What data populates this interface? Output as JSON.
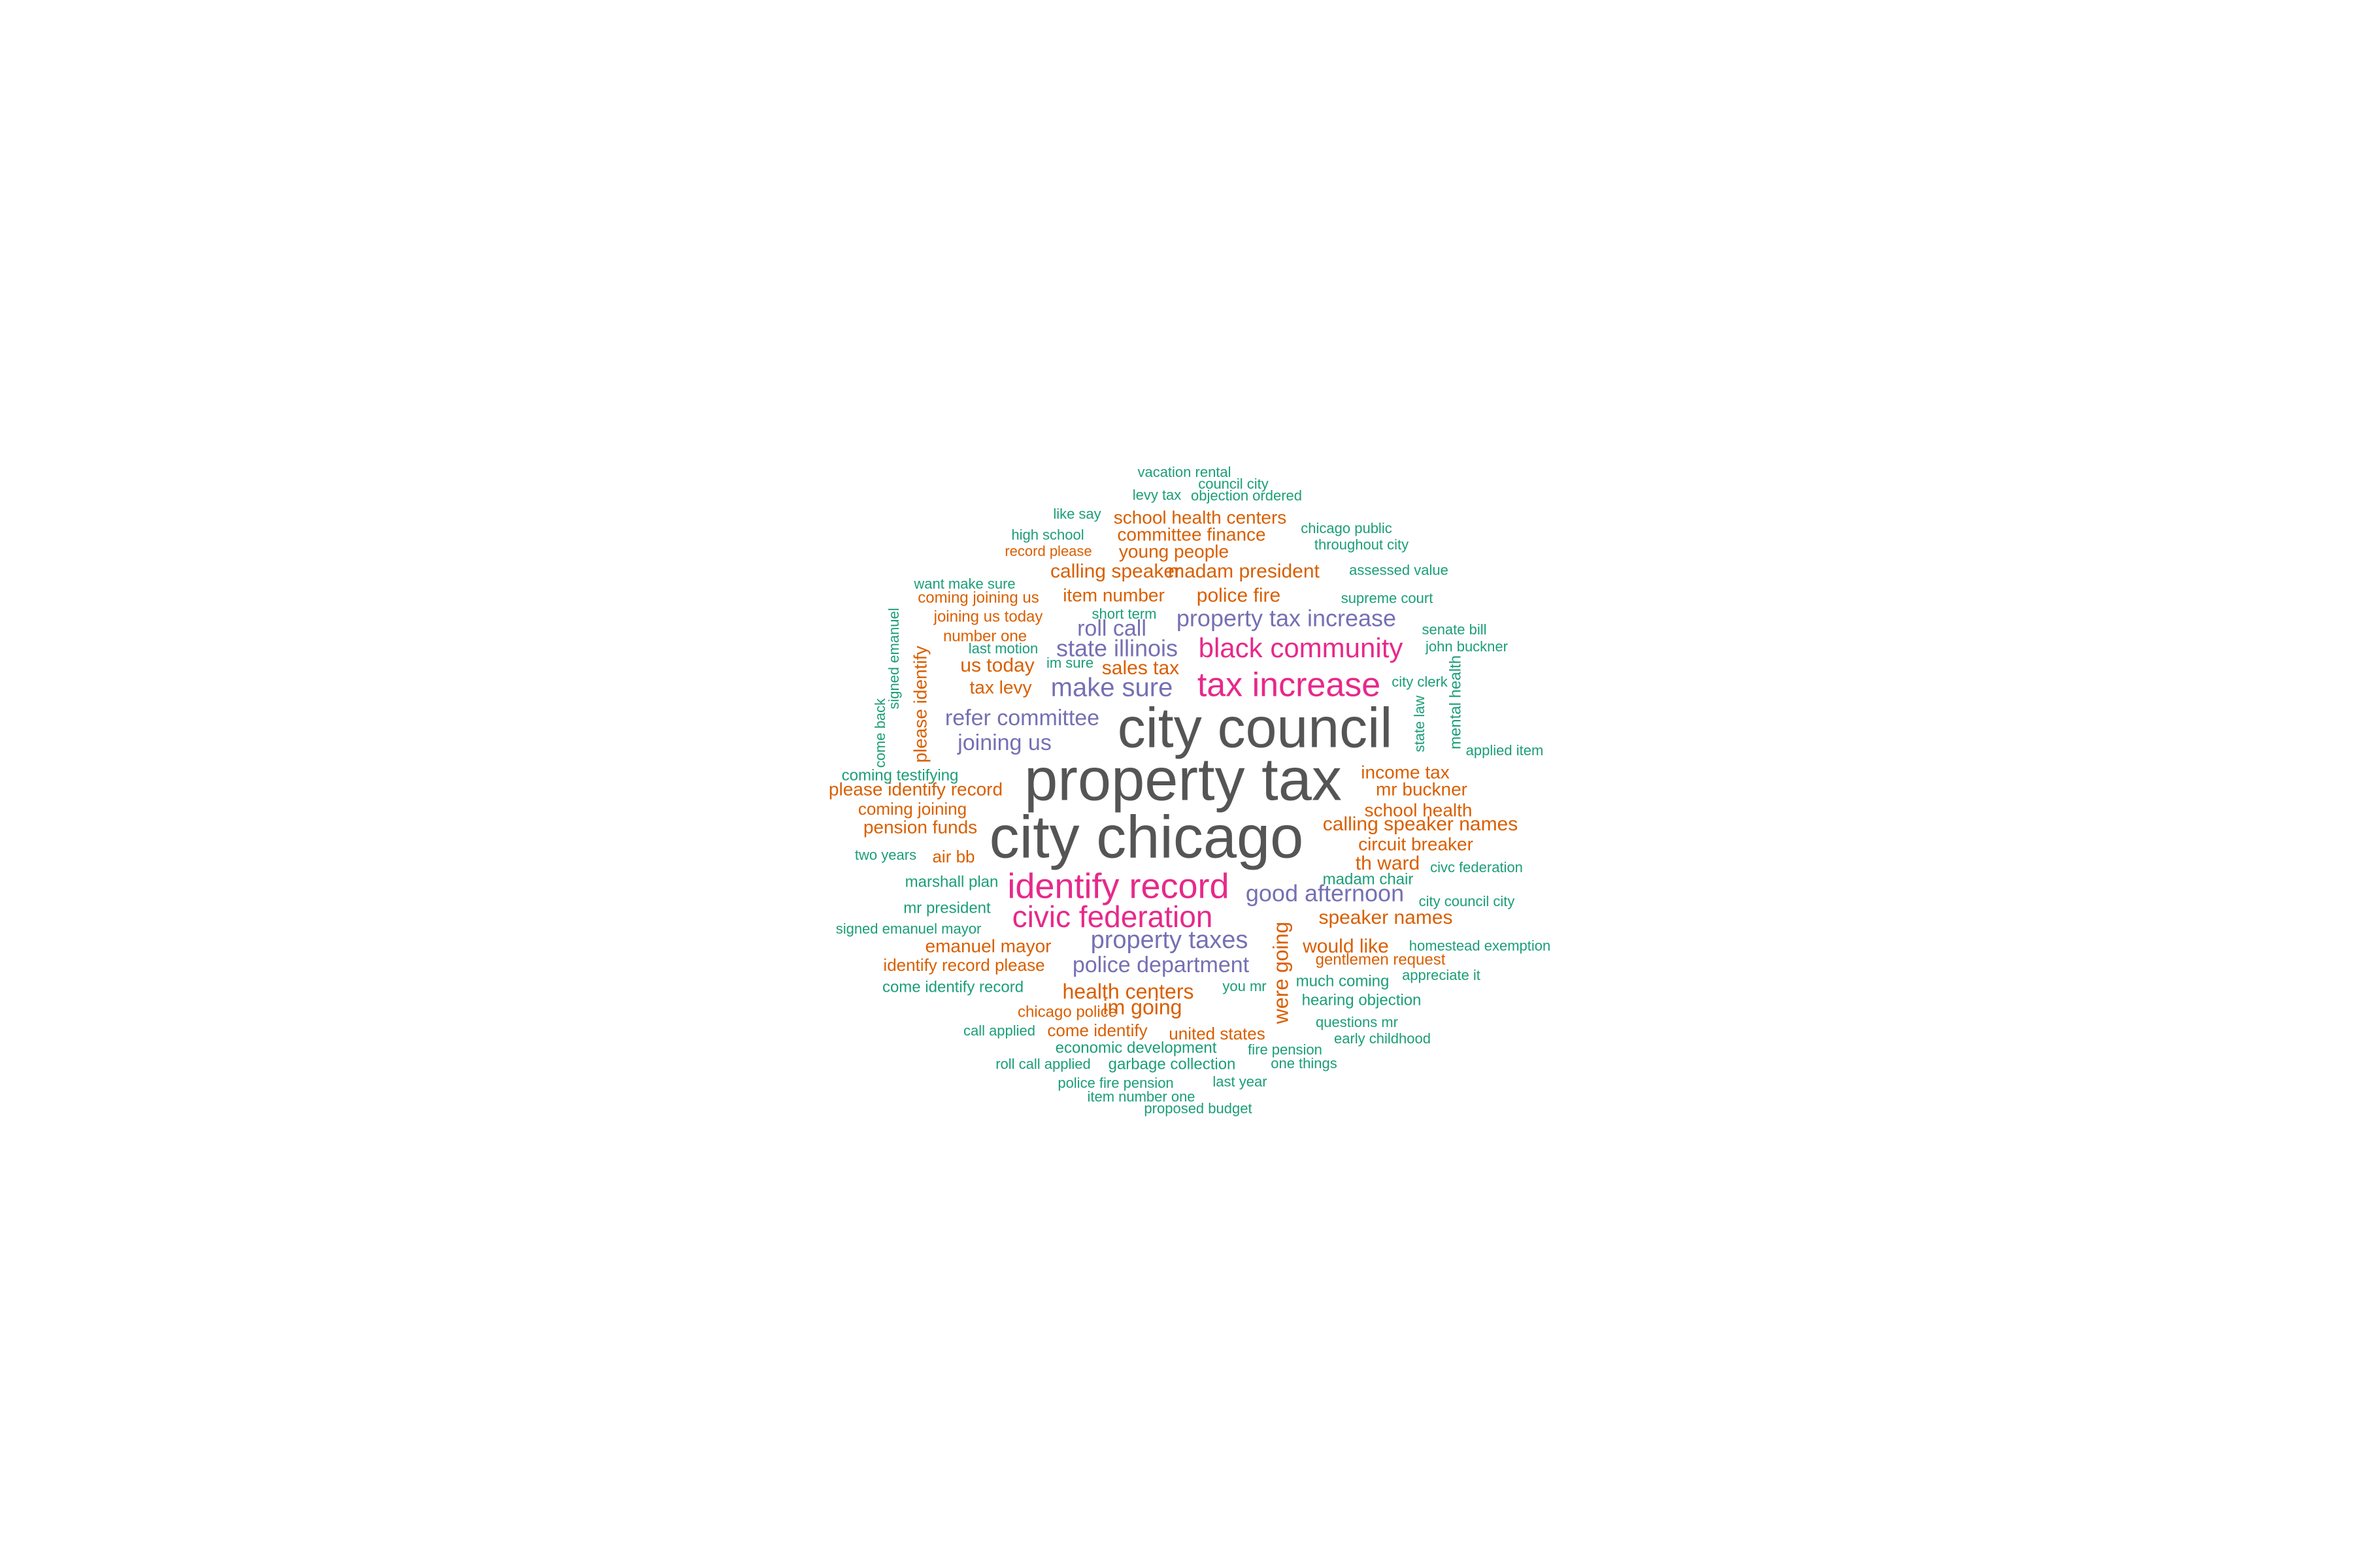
{
  "palette": {
    "gray": "#555555",
    "magenta": "#e7298a",
    "purple": "#7570b3",
    "orange": "#d95f02",
    "green": "#1b9e77"
  },
  "words": [
    {
      "text": "vacation rental",
      "color": "green"
    },
    {
      "text": "council city",
      "color": "green"
    },
    {
      "text": "levy tax",
      "color": "green"
    },
    {
      "text": "objection ordered",
      "color": "green"
    },
    {
      "text": "like say",
      "color": "green"
    },
    {
      "text": "school health centers",
      "color": "orange"
    },
    {
      "text": "high school",
      "color": "green"
    },
    {
      "text": "committee finance",
      "color": "orange"
    },
    {
      "text": "chicago public",
      "color": "green"
    },
    {
      "text": "throughout city",
      "color": "green"
    },
    {
      "text": "record please",
      "color": "orange"
    },
    {
      "text": "young people",
      "color": "orange"
    },
    {
      "text": "calling speaker",
      "color": "orange"
    },
    {
      "text": "madam president",
      "color": "orange"
    },
    {
      "text": "assessed value",
      "color": "green"
    },
    {
      "text": "want make sure",
      "color": "green"
    },
    {
      "text": "coming joining us",
      "color": "orange"
    },
    {
      "text": "item number",
      "color": "orange"
    },
    {
      "text": "police fire",
      "color": "orange"
    },
    {
      "text": "supreme court",
      "color": "green"
    },
    {
      "text": "joining us today",
      "color": "orange"
    },
    {
      "text": "short term",
      "color": "green"
    },
    {
      "text": "property tax increase",
      "color": "purple"
    },
    {
      "text": "signed emanuel",
      "color": "green"
    },
    {
      "text": "senate bill",
      "color": "green"
    },
    {
      "text": "number one",
      "color": "orange"
    },
    {
      "text": "roll call",
      "color": "purple"
    },
    {
      "text": "last motion",
      "color": "green"
    },
    {
      "text": "state illinois",
      "color": "purple"
    },
    {
      "text": "black community",
      "color": "magenta"
    },
    {
      "text": "john buckner",
      "color": "green"
    },
    {
      "text": "im sure",
      "color": "green"
    },
    {
      "text": "us today",
      "color": "orange"
    },
    {
      "text": "sales tax",
      "color": "orange"
    },
    {
      "text": "please identify",
      "color": "orange"
    },
    {
      "text": "city clerk",
      "color": "green"
    },
    {
      "text": "tax levy",
      "color": "orange"
    },
    {
      "text": "make sure",
      "color": "purple"
    },
    {
      "text": "tax increase",
      "color": "magenta"
    },
    {
      "text": "mental health",
      "color": "green"
    },
    {
      "text": "come back",
      "color": "green"
    },
    {
      "text": "refer committee",
      "color": "purple"
    },
    {
      "text": "state law",
      "color": "green"
    },
    {
      "text": "city council",
      "color": "gray"
    },
    {
      "text": "joining us",
      "color": "purple"
    },
    {
      "text": "applied item",
      "color": "green"
    },
    {
      "text": "coming testifying",
      "color": "green"
    },
    {
      "text": "income tax",
      "color": "orange"
    },
    {
      "text": "property tax",
      "color": "gray"
    },
    {
      "text": "please identify record",
      "color": "orange"
    },
    {
      "text": "mr buckner",
      "color": "orange"
    },
    {
      "text": "coming joining",
      "color": "orange"
    },
    {
      "text": "school health",
      "color": "orange"
    },
    {
      "text": "pension funds",
      "color": "orange"
    },
    {
      "text": "calling speaker names",
      "color": "orange"
    },
    {
      "text": "city chicago",
      "color": "gray"
    },
    {
      "text": "circuit breaker",
      "color": "orange"
    },
    {
      "text": "two years",
      "color": "green"
    },
    {
      "text": "air bb",
      "color": "orange"
    },
    {
      "text": "th ward",
      "color": "orange"
    },
    {
      "text": "civc federation",
      "color": "green"
    },
    {
      "text": "marshall plan",
      "color": "green"
    },
    {
      "text": "identify record",
      "color": "magenta"
    },
    {
      "text": "madam chair",
      "color": "green"
    },
    {
      "text": "good afternoon",
      "color": "purple"
    },
    {
      "text": "city council city",
      "color": "green"
    },
    {
      "text": "mr president",
      "color": "green"
    },
    {
      "text": "civic federation",
      "color": "magenta"
    },
    {
      "text": "speaker names",
      "color": "orange"
    },
    {
      "text": "signed emanuel mayor",
      "color": "green"
    },
    {
      "text": "property taxes",
      "color": "purple"
    },
    {
      "text": "emanuel mayor",
      "color": "orange"
    },
    {
      "text": "would like",
      "color": "orange"
    },
    {
      "text": "homestead exemption",
      "color": "green"
    },
    {
      "text": "identify record please",
      "color": "orange"
    },
    {
      "text": "police department",
      "color": "purple"
    },
    {
      "text": "gentlemen request",
      "color": "orange"
    },
    {
      "text": "appreciate it",
      "color": "green"
    },
    {
      "text": "come identify record",
      "color": "green"
    },
    {
      "text": "health centers",
      "color": "orange"
    },
    {
      "text": "you mr",
      "color": "green"
    },
    {
      "text": "much coming",
      "color": "green"
    },
    {
      "text": "were going",
      "color": "orange"
    },
    {
      "text": "hearing objection",
      "color": "green"
    },
    {
      "text": "chicago police",
      "color": "orange"
    },
    {
      "text": "im going",
      "color": "orange"
    },
    {
      "text": "questions mr",
      "color": "green"
    },
    {
      "text": "call applied",
      "color": "green"
    },
    {
      "text": "come identify",
      "color": "orange"
    },
    {
      "text": "united states",
      "color": "orange"
    },
    {
      "text": "early childhood",
      "color": "green"
    },
    {
      "text": "economic development",
      "color": "green"
    },
    {
      "text": "fire pension",
      "color": "green"
    },
    {
      "text": "roll call applied",
      "color": "green"
    },
    {
      "text": "garbage collection",
      "color": "green"
    },
    {
      "text": "one things",
      "color": "green"
    },
    {
      "text": "police fire pension",
      "color": "green"
    },
    {
      "text": "last year",
      "color": "green"
    },
    {
      "text": "item number one",
      "color": "green"
    },
    {
      "text": "proposed budget",
      "color": "green"
    }
  ]
}
